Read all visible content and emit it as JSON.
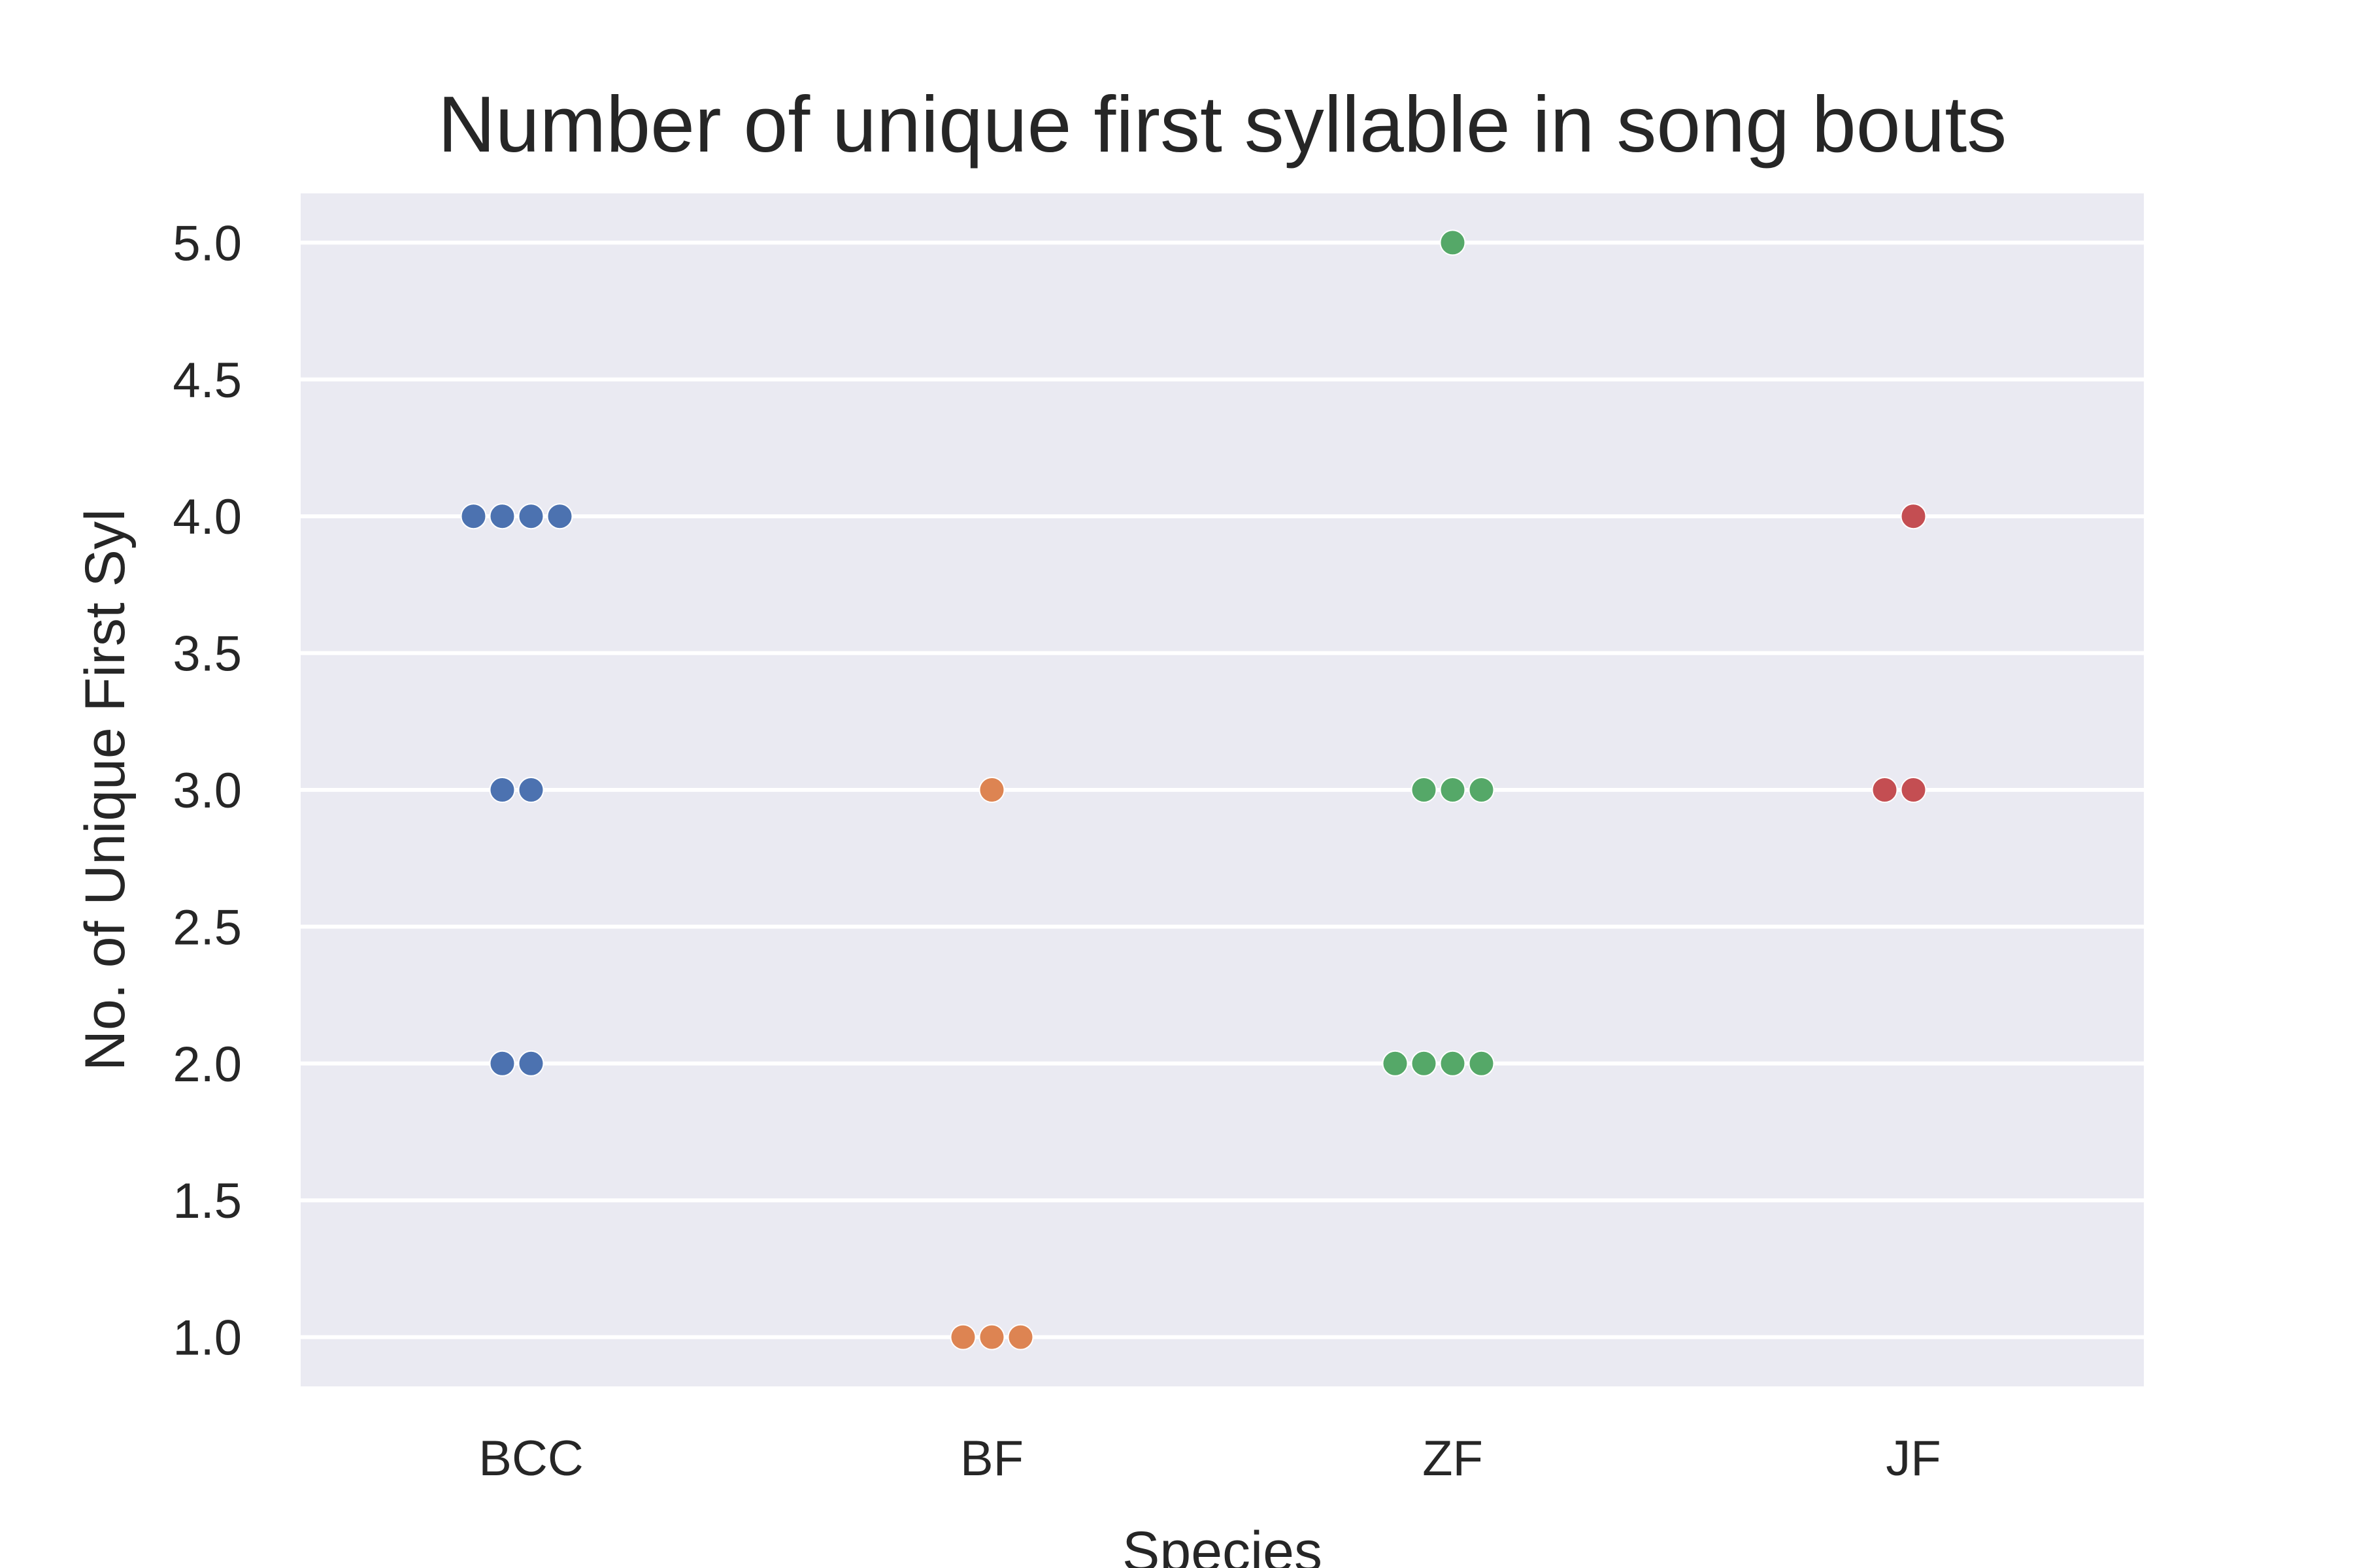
{
  "chart_data": {
    "type": "scatter",
    "subtype": "swarm",
    "title": "Number of unique first syllable in song bouts",
    "xlabel": "Species",
    "ylabel": "No. of Unique First Syl",
    "categories": [
      "BCC",
      "BF",
      "ZF",
      "JF"
    ],
    "ylim": [
      0.82,
      5.18
    ],
    "yticks": [
      "1.0",
      "1.5",
      "2.0",
      "2.5",
      "3.0",
      "3.5",
      "4.0",
      "4.5",
      "5.0"
    ],
    "grid": true,
    "background": "#eaeaf2",
    "grid_color": "#ffffff",
    "series": [
      {
        "category": "BCC",
        "color": "#4c72b0",
        "values": [
          4,
          4,
          4,
          4,
          3,
          3,
          2,
          2
        ]
      },
      {
        "category": "BF",
        "color": "#dd8452",
        "values": [
          3,
          1,
          1,
          1
        ]
      },
      {
        "category": "ZF",
        "color": "#55a868",
        "values": [
          5,
          3,
          3,
          3,
          2,
          2,
          2,
          2
        ]
      },
      {
        "category": "JF",
        "color": "#c44e52",
        "values": [
          4,
          3,
          3
        ]
      }
    ]
  }
}
